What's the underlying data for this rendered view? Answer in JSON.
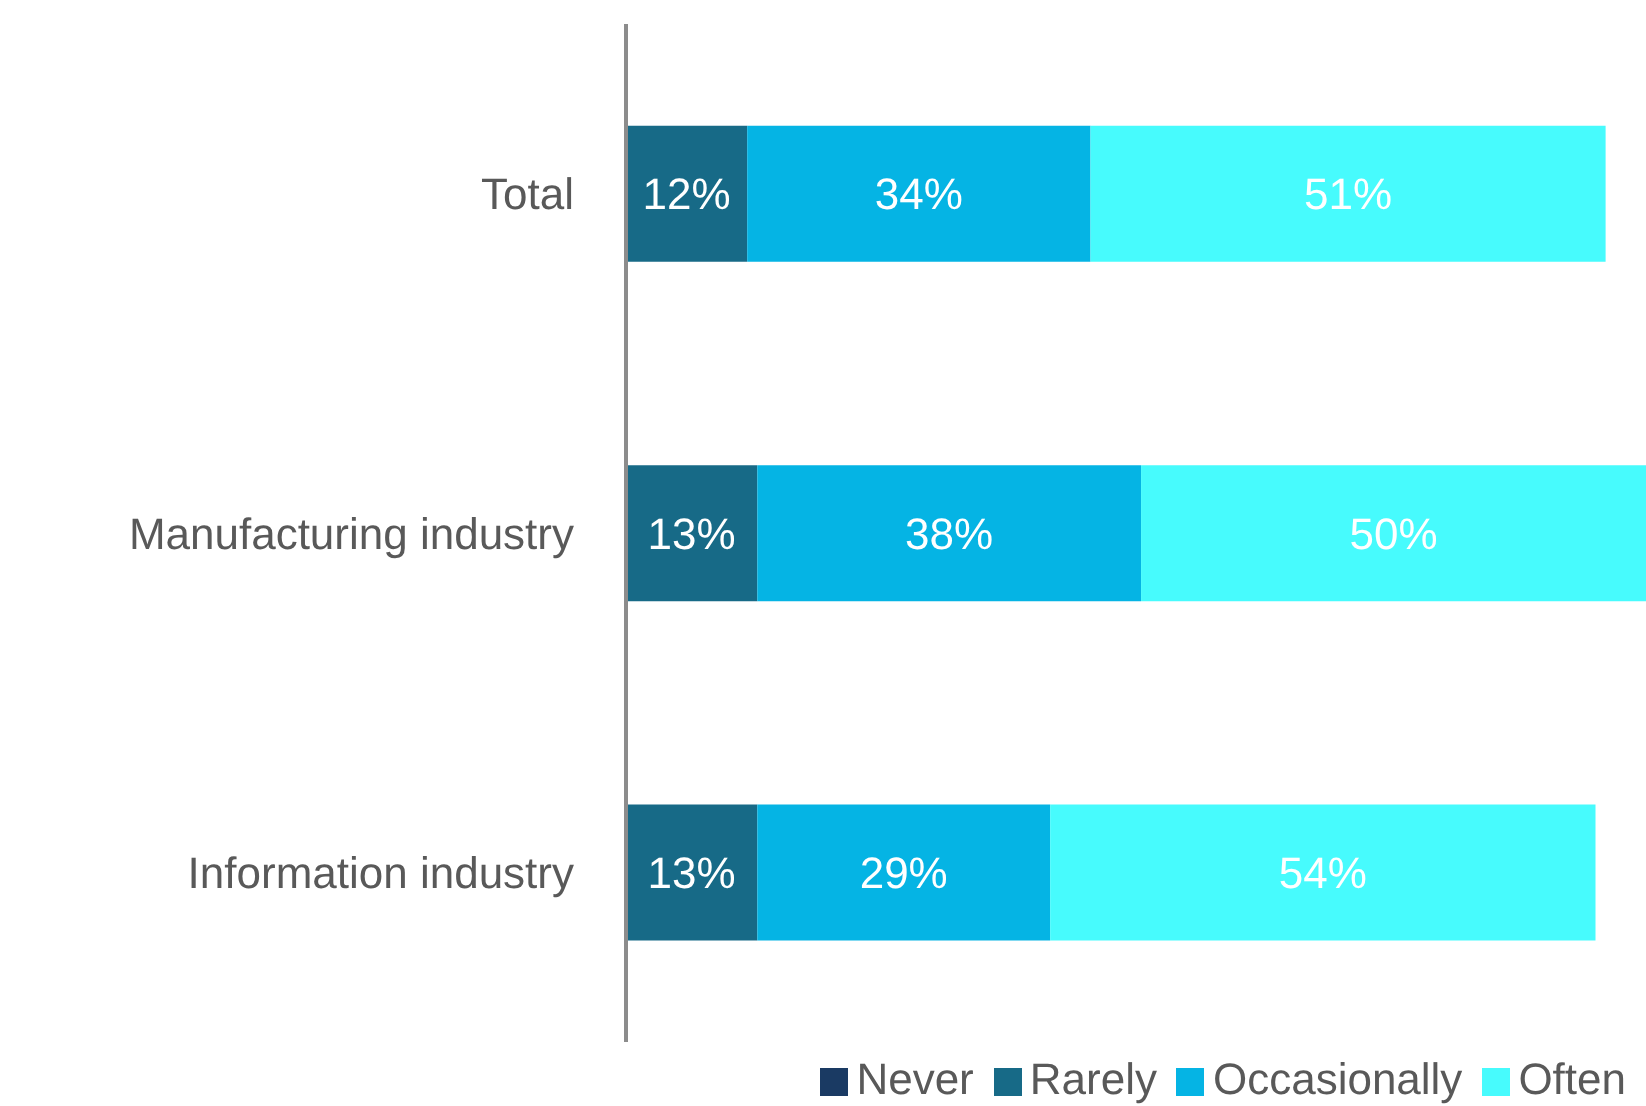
{
  "chart_data": {
    "type": "bar",
    "orientation": "horizontal",
    "stacked": true,
    "categories": [
      "Total",
      "Manufacturing industry",
      "Information industry"
    ],
    "series": [
      {
        "name": "Never",
        "color": "#1a3a63",
        "values": [
          null,
          null,
          null
        ],
        "value_labels": [
          null,
          null,
          null
        ]
      },
      {
        "name": "Rarely",
        "color": "#176a87",
        "values": [
          12,
          13,
          13
        ],
        "value_labels": [
          "12%",
          "13%",
          "13%"
        ]
      },
      {
        "name": "Occasionally",
        "color": "#05b4e4",
        "values": [
          34,
          38,
          29
        ],
        "value_labels": [
          "34%",
          "38%",
          "29%"
        ]
      },
      {
        "name": "Often",
        "color": "#47fbfd",
        "values": [
          51,
          50,
          54
        ],
        "value_labels": [
          "51%",
          "50%",
          "54%"
        ]
      }
    ],
    "xlim": [
      0,
      101
    ],
    "tick_labels": "y",
    "legend": "bottom",
    "grid": false
  }
}
